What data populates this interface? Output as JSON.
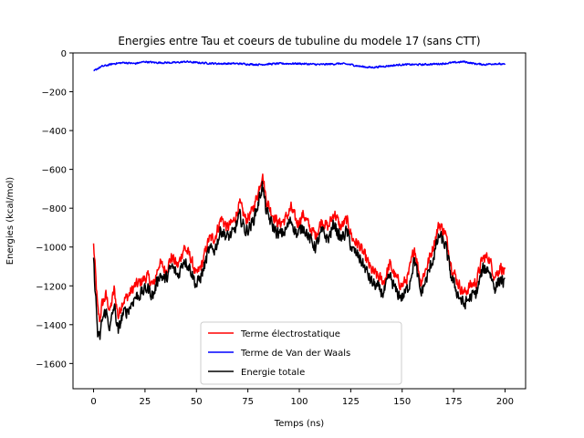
{
  "chart_data": {
    "type": "line",
    "title": "Energies entre Tau et coeurs de tubuline du modele 17 (sans CTT)",
    "xlabel": "Temps (ns)",
    "ylabel": "Energies (kcal/mol)",
    "xlim": [
      -10,
      210
    ],
    "ylim": [
      -1730,
      0
    ],
    "xticks": [
      0,
      25,
      50,
      75,
      100,
      125,
      150,
      175,
      200
    ],
    "yticks": [
      0,
      -200,
      -400,
      -600,
      -800,
      -1000,
      -1200,
      -1400,
      -1600
    ],
    "xtick_labels": [
      "0",
      "25",
      "50",
      "75",
      "100",
      "125",
      "150",
      "175",
      "200"
    ],
    "ytick_labels": [
      "0",
      "−200",
      "−400",
      "−600",
      "−800",
      "−1000",
      "−1200",
      "−1400",
      "−1600"
    ],
    "grid": false,
    "legend_position": "bottom-center",
    "series": [
      {
        "name": "Terme électrostatique",
        "color": "#ff0000",
        "x": [
          0,
          1,
          2,
          3,
          4,
          6,
          8,
          10,
          12,
          14,
          17,
          20,
          23,
          26,
          29,
          32,
          35,
          38,
          41,
          44,
          47,
          50,
          53,
          56,
          59,
          62,
          65,
          68,
          71,
          74,
          77,
          80,
          82,
          84,
          87,
          90,
          93,
          96,
          99,
          102,
          105,
          108,
          111,
          114,
          117,
          120,
          123,
          126,
          129,
          132,
          135,
          138,
          141,
          144,
          147,
          150,
          153,
          156,
          159,
          162,
          165,
          168,
          171,
          174,
          177,
          180,
          183,
          186,
          189,
          192,
          195,
          198,
          200
        ],
        "values": [
          -990,
          -1150,
          -1320,
          -1380,
          -1300,
          -1250,
          -1330,
          -1220,
          -1360,
          -1280,
          -1250,
          -1200,
          -1180,
          -1150,
          -1200,
          -1080,
          -1120,
          -1050,
          -1100,
          -1000,
          -1050,
          -1150,
          -1080,
          -960,
          -950,
          -850,
          -900,
          -870,
          -780,
          -860,
          -820,
          -720,
          -620,
          -760,
          -830,
          -880,
          -860,
          -800,
          -880,
          -830,
          -900,
          -940,
          -860,
          -900,
          -820,
          -900,
          -860,
          -960,
          -990,
          -1050,
          -1120,
          -1150,
          -1180,
          -1090,
          -1160,
          -1200,
          -1150,
          -1000,
          -1180,
          -1100,
          -1000,
          -880,
          -930,
          -1100,
          -1180,
          -1240,
          -1200,
          -1180,
          -1060,
          -1050,
          -1150,
          -1100,
          -1140
        ]
      },
      {
        "name": "Terme de Van der Waals",
        "color": "#0000ff",
        "x": [
          0,
          2,
          4,
          6,
          10,
          15,
          20,
          25,
          30,
          40,
          45,
          50,
          60,
          70,
          80,
          90,
          100,
          110,
          120,
          125,
          130,
          135,
          140,
          150,
          160,
          170,
          175,
          180,
          185,
          190,
          195,
          200
        ],
        "values": [
          -95,
          -80,
          -70,
          -65,
          -55,
          -50,
          -55,
          -45,
          -50,
          -50,
          -45,
          -50,
          -55,
          -55,
          -60,
          -55,
          -55,
          -60,
          -55,
          -60,
          -70,
          -75,
          -70,
          -60,
          -60,
          -55,
          -50,
          -45,
          -55,
          -60,
          -55,
          -60
        ]
      },
      {
        "name": "Energie totale",
        "color": "#000000",
        "x": [
          0,
          1,
          2,
          3,
          4,
          6,
          8,
          10,
          12,
          14,
          17,
          20,
          23,
          26,
          29,
          32,
          35,
          38,
          41,
          44,
          47,
          50,
          53,
          56,
          59,
          62,
          65,
          68,
          71,
          74,
          77,
          80,
          82,
          84,
          87,
          90,
          93,
          96,
          99,
          102,
          105,
          108,
          111,
          114,
          117,
          120,
          123,
          126,
          129,
          132,
          135,
          138,
          141,
          144,
          147,
          150,
          153,
          156,
          159,
          162,
          165,
          168,
          171,
          174,
          177,
          180,
          183,
          186,
          189,
          192,
          195,
          198,
          200
        ],
        "values": [
          -1080,
          -1250,
          -1450,
          -1480,
          -1380,
          -1330,
          -1420,
          -1300,
          -1440,
          -1350,
          -1320,
          -1260,
          -1240,
          -1210,
          -1250,
          -1140,
          -1170,
          -1100,
          -1150,
          -1060,
          -1110,
          -1200,
          -1130,
          -1020,
          -1010,
          -910,
          -950,
          -930,
          -840,
          -920,
          -880,
          -780,
          -680,
          -820,
          -890,
          -940,
          -920,
          -860,
          -940,
          -890,
          -960,
          -1000,
          -920,
          -960,
          -880,
          -960,
          -920,
          -1020,
          -1050,
          -1110,
          -1180,
          -1210,
          -1240,
          -1150,
          -1230,
          -1260,
          -1210,
          -1060,
          -1240,
          -1160,
          -1060,
          -940,
          -990,
          -1160,
          -1240,
          -1300,
          -1260,
          -1240,
          -1120,
          -1110,
          -1210,
          -1160,
          -1200
        ]
      }
    ]
  }
}
